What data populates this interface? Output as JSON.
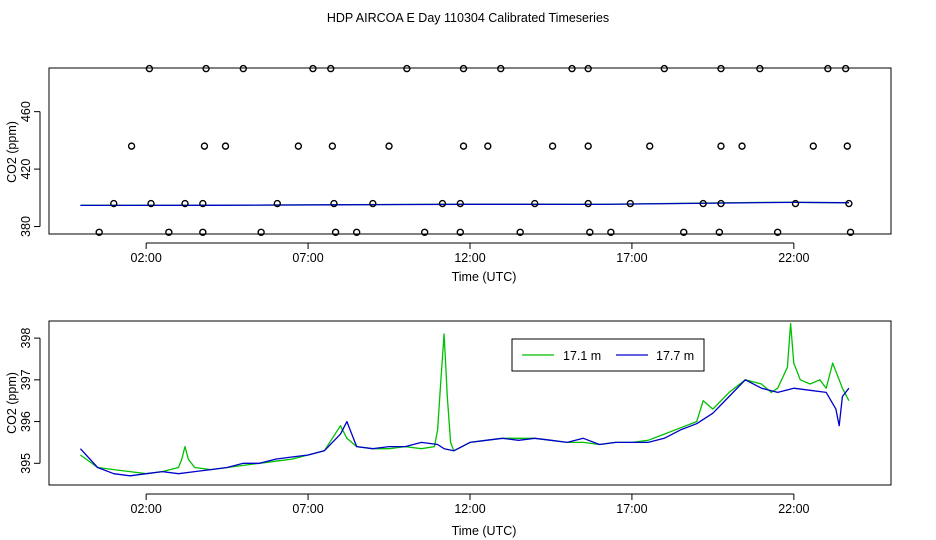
{
  "figure_title": "HDP AIRCOA E  Day 110304  Calibrated Timeseries",
  "colors": {
    "green": "#00c000",
    "blue": "#0000cc",
    "axis": "#000000"
  },
  "chart_data": [
    {
      "id": "top",
      "type": "scatter",
      "title": "",
      "xlabel": "Time (UTC)",
      "ylabel": "CO2 (ppm)",
      "xlim": [
        -1.0,
        25.0
      ],
      "ylim": [
        374.8,
        490.4
      ],
      "xticks": [
        2,
        7,
        12,
        17,
        22
      ],
      "xtick_labels": [
        "02:00",
        "07:00",
        "12:00",
        "17:00",
        "22:00"
      ],
      "yticks": [
        380,
        420,
        460
      ],
      "ytick_labels": [
        "380",
        "420",
        "460"
      ],
      "grid": false,
      "legend": null,
      "points": [
        {
          "x": 2.1,
          "y": 490
        },
        {
          "x": 3.85,
          "y": 490
        },
        {
          "x": 5.0,
          "y": 490
        },
        {
          "x": 7.15,
          "y": 490
        },
        {
          "x": 7.7,
          "y": 490
        },
        {
          "x": 10.05,
          "y": 490
        },
        {
          "x": 11.8,
          "y": 490
        },
        {
          "x": 12.95,
          "y": 490
        },
        {
          "x": 15.15,
          "y": 490
        },
        {
          "x": 15.65,
          "y": 490
        },
        {
          "x": 18.0,
          "y": 490
        },
        {
          "x": 19.75,
          "y": 490
        },
        {
          "x": 20.95,
          "y": 490
        },
        {
          "x": 23.05,
          "y": 490
        },
        {
          "x": 23.6,
          "y": 490
        },
        {
          "x": 1.55,
          "y": 436
        },
        {
          "x": 3.8,
          "y": 436
        },
        {
          "x": 4.45,
          "y": 436
        },
        {
          "x": 6.7,
          "y": 436
        },
        {
          "x": 7.75,
          "y": 436
        },
        {
          "x": 9.5,
          "y": 436
        },
        {
          "x": 11.8,
          "y": 436
        },
        {
          "x": 12.55,
          "y": 436
        },
        {
          "x": 14.55,
          "y": 436
        },
        {
          "x": 15.65,
          "y": 436
        },
        {
          "x": 17.55,
          "y": 436
        },
        {
          "x": 19.75,
          "y": 436
        },
        {
          "x": 20.4,
          "y": 436
        },
        {
          "x": 22.6,
          "y": 436
        },
        {
          "x": 23.65,
          "y": 436
        },
        {
          "x": 1.0,
          "y": 396
        },
        {
          "x": 2.15,
          "y": 396
        },
        {
          "x": 3.2,
          "y": 396
        },
        {
          "x": 3.75,
          "y": 396
        },
        {
          "x": 6.05,
          "y": 396
        },
        {
          "x": 7.8,
          "y": 396
        },
        {
          "x": 9.0,
          "y": 396
        },
        {
          "x": 11.15,
          "y": 396
        },
        {
          "x": 11.7,
          "y": 396
        },
        {
          "x": 14.0,
          "y": 396
        },
        {
          "x": 15.65,
          "y": 396
        },
        {
          "x": 16.95,
          "y": 396
        },
        {
          "x": 19.2,
          "y": 396
        },
        {
          "x": 19.75,
          "y": 396
        },
        {
          "x": 22.05,
          "y": 396
        },
        {
          "x": 23.7,
          "y": 396
        },
        {
          "x": 0.55,
          "y": 376
        },
        {
          "x": 2.7,
          "y": 376
        },
        {
          "x": 3.75,
          "y": 376
        },
        {
          "x": 5.55,
          "y": 376
        },
        {
          "x": 7.85,
          "y": 376
        },
        {
          "x": 8.5,
          "y": 376
        },
        {
          "x": 10.6,
          "y": 376
        },
        {
          "x": 11.7,
          "y": 376
        },
        {
          "x": 13.55,
          "y": 376
        },
        {
          "x": 15.7,
          "y": 376
        },
        {
          "x": 16.35,
          "y": 376
        },
        {
          "x": 18.6,
          "y": 376
        },
        {
          "x": 19.7,
          "y": 376
        },
        {
          "x": 21.5,
          "y": 376
        },
        {
          "x": 23.75,
          "y": 376
        }
      ],
      "series": [
        {
          "color": "#00c000",
          "x": [
            -0.03,
            4,
            8,
            12,
            16,
            20,
            21,
            22,
            23.7
          ],
          "y": [
            394.8,
            394.8,
            395.2,
            395.6,
            395.5,
            396.5,
            396.8,
            396.9,
            396.5
          ]
        },
        {
          "color": "#0000cc",
          "x": [
            -0.03,
            4,
            8,
            12,
            16,
            20,
            21,
            22,
            23.7
          ],
          "y": [
            394.7,
            394.8,
            395.1,
            395.5,
            395.4,
            396.4,
            396.7,
            396.8,
            396.6
          ]
        }
      ]
    },
    {
      "id": "bottom",
      "type": "line",
      "title": "",
      "xlabel": "Time (UTC)",
      "ylabel": "CO2 (ppm)",
      "xlim": [
        -1.0,
        25.0
      ],
      "ylim": [
        394.48,
        398.41
      ],
      "xticks": [
        2,
        7,
        12,
        17,
        22
      ],
      "xtick_labels": [
        "02:00",
        "07:00",
        "12:00",
        "17:00",
        "22:00"
      ],
      "yticks": [
        395,
        396,
        397,
        398
      ],
      "ytick_labels": [
        "395",
        "396",
        "397",
        "398"
      ],
      "grid": false,
      "legend": {
        "position": "top-center",
        "entries": [
          {
            "label": "17.1 m",
            "color": "#00c000"
          },
          {
            "label": "17.7 m",
            "color": "#0000cc"
          }
        ]
      },
      "series": [
        {
          "name": "17.1 m",
          "color": "#00c000",
          "x": [
            -0.03,
            0.5,
            1.0,
            1.5,
            2.0,
            2.5,
            3.0,
            3.1,
            3.2,
            3.3,
            3.5,
            4.0,
            4.5,
            5.0,
            5.5,
            6.0,
            6.5,
            7.0,
            7.5,
            8.0,
            8.2,
            8.5,
            9.0,
            9.5,
            10.0,
            10.5,
            10.9,
            11.0,
            11.1,
            11.2,
            11.3,
            11.4,
            11.5,
            12.0,
            12.5,
            13.0,
            13.5,
            14.0,
            14.5,
            15.0,
            15.5,
            16.0,
            16.5,
            17.0,
            17.5,
            18.0,
            18.5,
            19.0,
            19.2,
            19.5,
            20.0,
            20.5,
            21.0,
            21.3,
            21.5,
            21.8,
            21.9,
            22.0,
            22.2,
            22.5,
            22.8,
            23.0,
            23.2,
            23.5,
            23.7
          ],
          "y": [
            395.2,
            394.9,
            394.85,
            394.8,
            394.75,
            394.8,
            394.9,
            395.1,
            395.4,
            395.1,
            394.9,
            394.85,
            394.9,
            394.95,
            395.0,
            395.05,
            395.1,
            395.2,
            395.3,
            395.9,
            395.6,
            395.4,
            395.35,
            395.35,
            395.4,
            395.35,
            395.4,
            395.8,
            397.0,
            398.1,
            396.6,
            395.5,
            395.3,
            395.5,
            395.55,
            395.6,
            395.6,
            395.6,
            395.55,
            395.5,
            395.5,
            395.45,
            395.5,
            395.5,
            395.55,
            395.7,
            395.85,
            396.0,
            396.5,
            396.3,
            396.7,
            397.0,
            396.9,
            396.7,
            396.8,
            397.3,
            398.35,
            397.4,
            397.0,
            396.9,
            397.0,
            396.8,
            397.4,
            396.8,
            396.5
          ]
        },
        {
          "name": "17.7 m",
          "color": "#0000cc",
          "x": [
            -0.03,
            0.5,
            1.0,
            1.5,
            2.0,
            2.5,
            3.0,
            3.5,
            4.0,
            4.5,
            5.0,
            5.5,
            6.0,
            6.5,
            7.0,
            7.5,
            8.0,
            8.2,
            8.5,
            9.0,
            9.5,
            10.0,
            10.5,
            11.0,
            11.2,
            11.5,
            12.0,
            12.5,
            13.0,
            13.5,
            14.0,
            14.5,
            15.0,
            15.5,
            16.0,
            16.5,
            17.0,
            17.5,
            18.0,
            18.5,
            19.0,
            19.5,
            20.0,
            20.5,
            21.0,
            21.5,
            22.0,
            22.5,
            23.0,
            23.3,
            23.4,
            23.5,
            23.7
          ],
          "y": [
            395.35,
            394.9,
            394.75,
            394.7,
            394.75,
            394.8,
            394.75,
            394.8,
            394.85,
            394.9,
            395.0,
            395.0,
            395.1,
            395.15,
            395.2,
            395.3,
            395.7,
            396.0,
            395.4,
            395.35,
            395.4,
            395.4,
            395.5,
            395.45,
            395.35,
            395.3,
            395.5,
            395.55,
            395.6,
            395.55,
            395.6,
            395.55,
            395.5,
            395.6,
            395.45,
            395.5,
            395.5,
            395.5,
            395.6,
            395.8,
            395.95,
            396.2,
            396.6,
            397.0,
            396.8,
            396.7,
            396.8,
            396.75,
            396.7,
            396.3,
            395.9,
            396.6,
            396.8
          ]
        }
      ]
    }
  ]
}
